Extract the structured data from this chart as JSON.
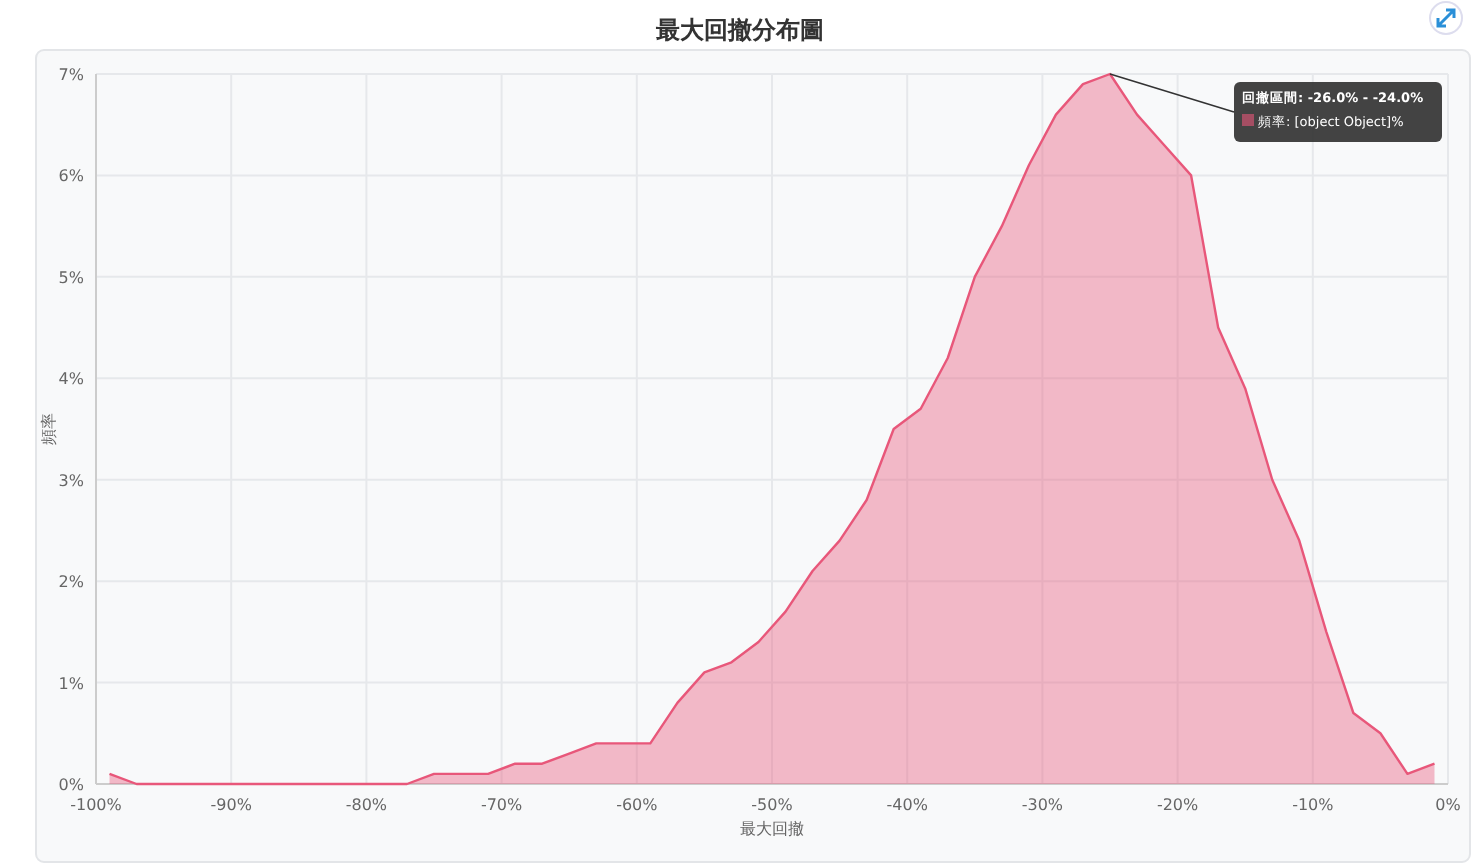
{
  "chart_data": {
    "type": "area",
    "title": "最大回撤分布圖",
    "xlabel": "最大回撤",
    "ylabel": "頻率",
    "x": [
      -99,
      -97,
      -95,
      -93,
      -91,
      -89,
      -87,
      -85,
      -83,
      -81,
      -79,
      -77,
      -75,
      -73,
      -71,
      -69,
      -67,
      -65,
      -63,
      -61,
      -59,
      -57,
      -55,
      -53,
      -51,
      -49,
      -47,
      -45,
      -43,
      -41,
      -39,
      -37,
      -35,
      -33,
      -31,
      -29,
      -27,
      -25,
      -23,
      -21,
      -19,
      -17,
      -15,
      -13,
      -11,
      -9,
      -7,
      -5,
      -3,
      -1
    ],
    "series": [
      {
        "color": "#e8577a",
        "values": [
          0.1,
          0,
          0,
          0,
          0,
          0,
          0,
          0,
          0,
          0,
          0,
          0,
          0.1,
          0.1,
          0.1,
          0.2,
          0.2,
          0.3,
          0.4,
          0.4,
          0.4,
          0.8,
          1.1,
          1.2,
          1.4,
          1.7,
          2.1,
          2.4,
          2.8,
          3.5,
          3.7,
          4.2,
          5.0,
          5.5,
          6.1,
          6.6,
          6.9,
          7.0,
          6.6,
          6.3,
          6.0,
          4.5,
          3.9,
          3.0,
          2.4,
          1.5,
          0.7,
          0.5,
          0.1,
          0.2
        ]
      }
    ],
    "xlim": [
      -100,
      0
    ],
    "xticks": [
      {
        "value": -100,
        "label": "-100%"
      },
      {
        "value": -90,
        "label": "-90%"
      },
      {
        "value": -80,
        "label": "-80%"
      },
      {
        "value": -70,
        "label": "-70%"
      },
      {
        "value": -60,
        "label": "-60%"
      },
      {
        "value": -50,
        "label": "-50%"
      },
      {
        "value": -40,
        "label": "-40%"
      },
      {
        "value": -30,
        "label": "-30%"
      },
      {
        "value": -20,
        "label": "-20%"
      },
      {
        "value": -10,
        "label": "-10%"
      },
      {
        "value": 0,
        "label": "0%"
      }
    ],
    "ylim": [
      0,
      7
    ],
    "yticks": [
      {
        "value": 0,
        "label": "0%"
      },
      {
        "value": 1,
        "label": "1%"
      },
      {
        "value": 2,
        "label": "2%"
      },
      {
        "value": 3,
        "label": "3%"
      },
      {
        "value": 4,
        "label": "4%"
      },
      {
        "value": 5,
        "label": "5%"
      },
      {
        "value": 6,
        "label": "6%"
      },
      {
        "value": 7,
        "label": "7%"
      }
    ],
    "grid": true,
    "annotations": [
      {
        "text": "回撤區間: -26.0% - -24.0%",
        "x": -25,
        "y": 7
      },
      "頻率: [object Object]%"
    ]
  }
}
